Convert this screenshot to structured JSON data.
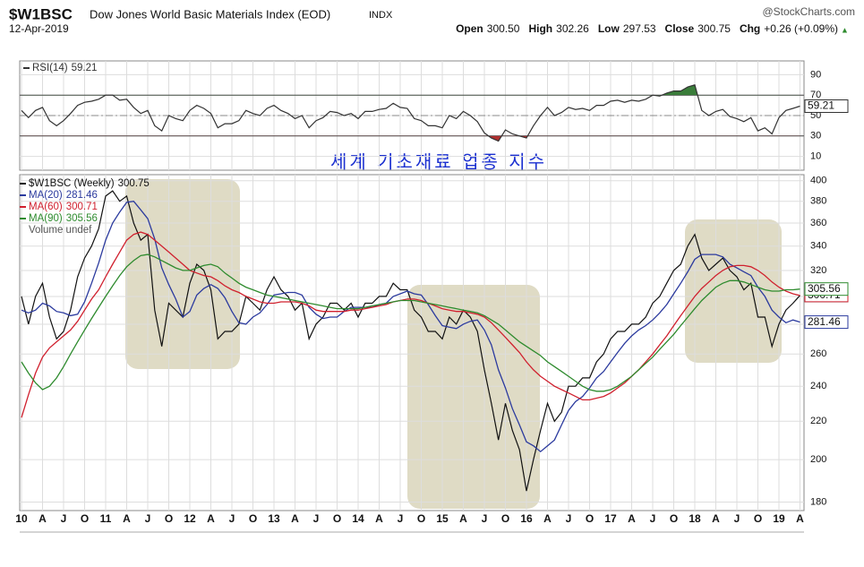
{
  "header": {
    "symbol": "$W1BSC",
    "name": "Dow Jones World Basic Materials Index (EOD)",
    "exchange": "INDX",
    "source": "@StockCharts.com",
    "date": "12-Apr-2019",
    "quote": [
      {
        "label": "Open",
        "value": "300.50"
      },
      {
        "label": "High",
        "value": "302.26"
      },
      {
        "label": "Low",
        "value": "297.53"
      },
      {
        "label": "Close",
        "value": "300.75"
      },
      {
        "label": "Chg",
        "value": "+0.26 (+0.09%)"
      }
    ],
    "direction": "▲"
  },
  "chart_data": [
    {
      "type": "line",
      "annotation": "세계 기초재료 업종 지수",
      "ylim": [
        0,
        100
      ],
      "yticks": [
        10,
        30,
        50,
        70,
        90
      ],
      "reference_lines": [
        30,
        50,
        70
      ],
      "overbought": 70,
      "oversold": 30,
      "grid": true,
      "series": [
        {
          "name": "RSI(14)",
          "color": "#333333",
          "last": 59.21,
          "values": [
            55,
            48,
            55,
            58,
            45,
            40,
            45,
            52,
            60,
            63,
            64,
            66,
            70,
            70,
            65,
            66,
            58,
            52,
            55,
            40,
            35,
            50,
            47,
            45,
            55,
            60,
            57,
            52,
            38,
            42,
            42,
            45,
            55,
            52,
            50,
            57,
            60,
            55,
            52,
            47,
            50,
            38,
            45,
            48,
            54,
            53,
            50,
            52,
            47,
            54,
            54,
            56,
            57,
            62,
            58,
            57,
            47,
            45,
            40,
            40,
            38,
            50,
            47,
            54,
            50,
            44,
            33,
            28,
            25,
            36,
            32,
            30,
            28,
            40,
            50,
            58,
            50,
            53,
            58,
            56,
            57,
            55,
            60,
            60,
            64,
            65,
            63,
            65,
            64,
            66,
            70,
            69,
            72,
            74,
            74,
            78,
            80,
            55,
            50,
            54,
            56,
            49,
            47,
            44,
            48,
            35,
            38,
            32,
            48,
            55,
            57,
            59.21
          ]
        }
      ]
    },
    {
      "type": "line",
      "log": true,
      "grid": true,
      "extra_legend": "Volume undef",
      "ylim": [
        177,
        406
      ],
      "yticks": [
        180,
        200,
        220,
        240,
        260,
        280,
        300,
        320,
        340,
        360,
        380,
        400
      ],
      "categories": [
        "10",
        null,
        null,
        "A",
        null,
        null,
        "J",
        null,
        null,
        "O",
        null,
        null,
        "11",
        null,
        null,
        "A",
        null,
        null,
        "J",
        null,
        null,
        "O",
        null,
        null,
        "12",
        null,
        null,
        "A",
        null,
        null,
        "J",
        null,
        null,
        "O",
        null,
        null,
        "13",
        null,
        null,
        "A",
        null,
        null,
        "J",
        null,
        null,
        "O",
        null,
        null,
        "14",
        null,
        null,
        "A",
        null,
        null,
        "J",
        null,
        null,
        "O",
        null,
        null,
        "15",
        null,
        null,
        "A",
        null,
        null,
        "J",
        null,
        null,
        "O",
        null,
        null,
        "16",
        null,
        null,
        "A",
        null,
        null,
        "J",
        null,
        null,
        "O",
        null,
        null,
        "17",
        null,
        null,
        "A",
        null,
        null,
        "J",
        null,
        null,
        "O",
        null,
        null,
        "18",
        null,
        null,
        "A",
        null,
        null,
        "J",
        null,
        null,
        "O",
        null,
        null,
        "19",
        null,
        null,
        "A"
      ],
      "series": [
        {
          "name": "$W1BSC (Weekly)",
          "color": "#111111",
          "last": 300.75,
          "values": [
            300,
            280,
            300,
            310,
            285,
            270,
            275,
            290,
            315,
            330,
            340,
            355,
            385,
            390,
            380,
            385,
            360,
            345,
            350,
            290,
            265,
            295,
            290,
            285,
            310,
            325,
            320,
            305,
            270,
            275,
            275,
            280,
            300,
            295,
            290,
            305,
            315,
            305,
            300,
            290,
            295,
            270,
            280,
            285,
            295,
            295,
            290,
            295,
            285,
            295,
            295,
            300,
            300,
            310,
            305,
            305,
            290,
            285,
            275,
            275,
            270,
            285,
            280,
            290,
            285,
            275,
            250,
            230,
            210,
            230,
            215,
            205,
            185,
            200,
            215,
            230,
            220,
            225,
            240,
            240,
            245,
            245,
            255,
            260,
            270,
            275,
            275,
            280,
            280,
            285,
            295,
            300,
            310,
            320,
            325,
            340,
            350,
            330,
            320,
            325,
            330,
            320,
            315,
            305,
            310,
            285,
            285,
            265,
            280,
            290,
            295,
            300.75
          ]
        },
        {
          "name": "MA(20)",
          "color": "#2b3a9e",
          "last": 281.46,
          "values": [
            290,
            288,
            290,
            295,
            293,
            289,
            288,
            286,
            287,
            296,
            310,
            326,
            345,
            360,
            370,
            379,
            380,
            372,
            364,
            346,
            322,
            309,
            298,
            285,
            289,
            301,
            306,
            309,
            306,
            299,
            289,
            281,
            280,
            285,
            288,
            294,
            301,
            302,
            303,
            303,
            301,
            292,
            287,
            284,
            285,
            285,
            289,
            292,
            292,
            292,
            292,
            294,
            295,
            300,
            302,
            304,
            302,
            301,
            294,
            286,
            279,
            278,
            277,
            280,
            282,
            283,
            276,
            266,
            250,
            239,
            227,
            218,
            209,
            207,
            204,
            207,
            210,
            218,
            226,
            231,
            234,
            239,
            245,
            249,
            255,
            261,
            267,
            272,
            276,
            279,
            283,
            288,
            294,
            302,
            310,
            319,
            329,
            333,
            333,
            333,
            331,
            325,
            322,
            319,
            316,
            307,
            300,
            290,
            285,
            281,
            283,
            281.46
          ]
        },
        {
          "name": "MA(60)",
          "color": "#d0202e",
          "last": 300.71,
          "values": [
            222,
            235,
            248,
            258,
            264,
            268,
            272,
            276,
            282,
            290,
            298,
            305,
            315,
            325,
            335,
            345,
            350,
            352,
            350,
            345,
            340,
            335,
            330,
            325,
            320,
            318,
            316,
            315,
            312,
            308,
            305,
            303,
            300,
            298,
            296,
            295,
            295,
            296,
            296,
            296,
            295,
            293,
            290,
            289,
            289,
            289,
            289,
            290,
            290,
            291,
            292,
            293,
            294,
            296,
            297,
            298,
            298,
            297,
            295,
            293,
            291,
            290,
            289,
            289,
            288,
            287,
            285,
            281,
            276,
            271,
            266,
            261,
            255,
            250,
            246,
            243,
            240,
            238,
            236,
            234,
            232,
            232,
            233,
            234,
            236,
            239,
            242,
            246,
            250,
            255,
            260,
            266,
            272,
            279,
            286,
            293,
            300,
            306,
            311,
            316,
            320,
            323,
            324,
            324,
            323,
            320,
            316,
            311,
            307,
            304,
            302,
            300.71
          ]
        },
        {
          "name": "MA(90)",
          "color": "#2e8b2e",
          "last": 305.56,
          "values": [
            255,
            248,
            242,
            238,
            240,
            245,
            252,
            260,
            268,
            276,
            284,
            292,
            300,
            308,
            316,
            323,
            328,
            332,
            333,
            331,
            328,
            325,
            322,
            320,
            320,
            322,
            324,
            325,
            323,
            318,
            314,
            310,
            307,
            305,
            303,
            301,
            300,
            299,
            298,
            297,
            296,
            295,
            294,
            293,
            292,
            291,
            291,
            291,
            291,
            292,
            293,
            294,
            295,
            296,
            297,
            297,
            297,
            296,
            295,
            294,
            293,
            292,
            291,
            290,
            289,
            288,
            286,
            283,
            280,
            276,
            272,
            268,
            265,
            262,
            259,
            255,
            252,
            249,
            246,
            243,
            240,
            238,
            237,
            237,
            238,
            240,
            243,
            246,
            250,
            254,
            258,
            263,
            268,
            273,
            279,
            285,
            291,
            297,
            302,
            307,
            310,
            312,
            312,
            311,
            309,
            307,
            305,
            304,
            304,
            305,
            305,
            305.56
          ]
        }
      ]
    }
  ]
}
